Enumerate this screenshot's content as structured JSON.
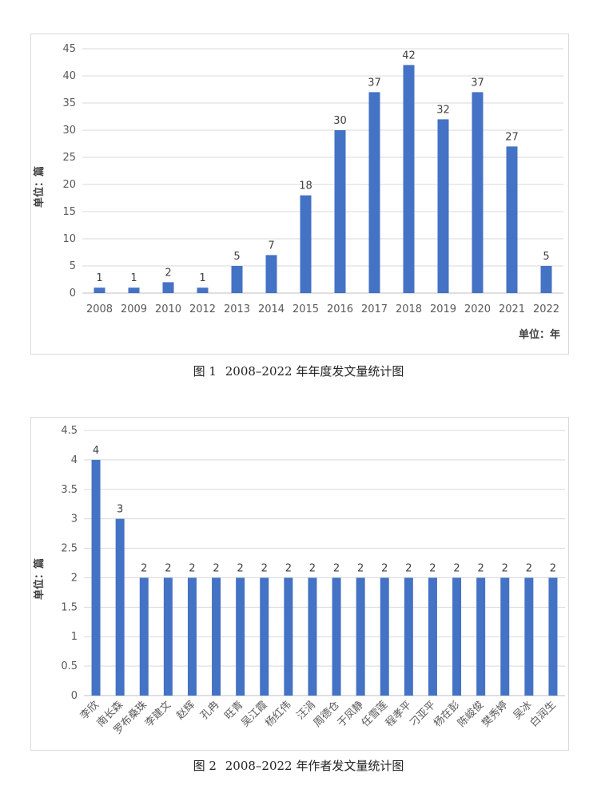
{
  "chart_data": [
    {
      "type": "bar",
      "caption": {
        "figure": "图 1",
        "text": "2008–2022 年年度发文量统计图"
      },
      "categories": [
        "2008",
        "2009",
        "2010",
        "2012",
        "2013",
        "2014",
        "2015",
        "2016",
        "2017",
        "2018",
        "2019",
        "2020",
        "2021",
        "2022"
      ],
      "values": [
        1,
        1,
        2,
        1,
        5,
        7,
        18,
        30,
        37,
        42,
        32,
        37,
        27,
        5
      ],
      "ylabel": "单位：篇",
      "xlabel": "单位：年",
      "ylim": [
        0,
        45
      ],
      "yticks": [
        0,
        5,
        10,
        15,
        20,
        25,
        30,
        35,
        40,
        45
      ],
      "grid": true,
      "data_labels": true,
      "bar_color": "#4472C4"
    },
    {
      "type": "bar",
      "caption": {
        "figure": "图 2",
        "text": "2008–2022 年作者发文量统计图"
      },
      "categories": [
        "李欣",
        "南长森",
        "罗布桑珠",
        "李建文",
        "赵辉",
        "孔冉",
        "旺青",
        "吴江霞",
        "杨红伟",
        "汪涓",
        "周德仓",
        "于凤静",
        "任雪莲",
        "程孝平",
        "刁亚平",
        "杨在彭",
        "陈峻俊",
        "樊秀婷",
        "吴冰",
        "白润生"
      ],
      "values": [
        4,
        3,
        2,
        2,
        2,
        2,
        2,
        2,
        2,
        2,
        2,
        2,
        2,
        2,
        2,
        2,
        2,
        2,
        2,
        2
      ],
      "ylabel": "单位：篇",
      "ylim": [
        0,
        4.5
      ],
      "yticks": [
        0,
        0.5,
        1,
        1.5,
        2,
        2.5,
        3,
        3.5,
        4,
        4.5
      ],
      "grid": true,
      "data_labels": true,
      "bar_color": "#4472C4"
    }
  ]
}
